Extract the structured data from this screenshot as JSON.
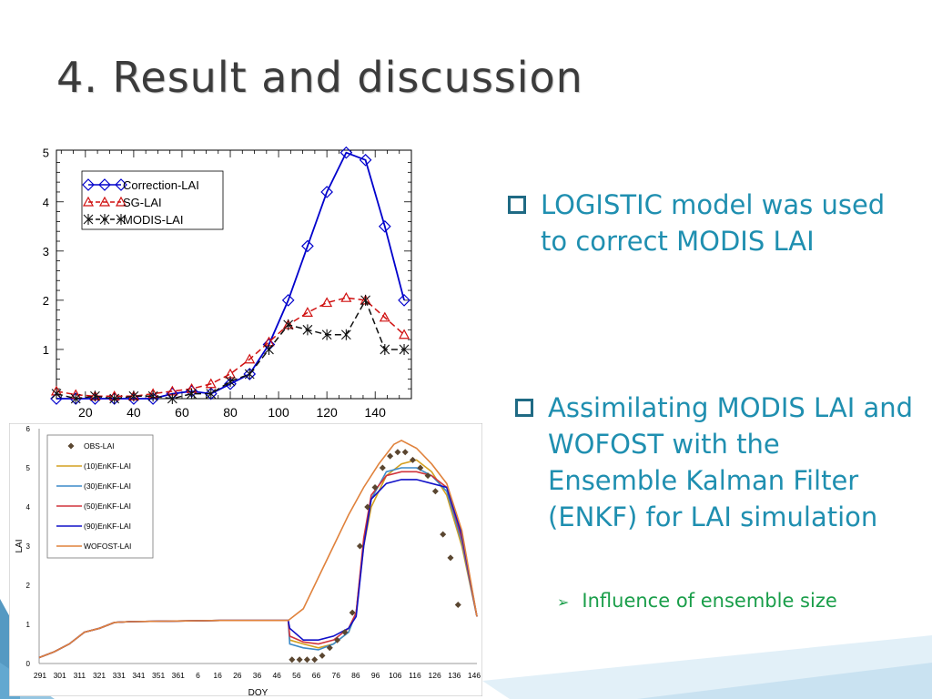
{
  "slide": {
    "title": "4. Result and discussion",
    "bullets": [
      "LOGISTIC model was used to correct MODIS LAI",
      "Assimilating MODIS LAI and WOFOST with the Ensemble Kalman Filter (ENKF)  for LAI simulation"
    ],
    "sub_bullet": "Influence of ensemble size",
    "colors": {
      "bullet_text": "#1f8fb0",
      "sub_text": "#1a9e4a",
      "title": "#3b3b3b"
    }
  },
  "chart_data": [
    {
      "type": "line",
      "xlim": [
        8,
        155
      ],
      "ylim": [
        0,
        5.05
      ],
      "xticks": [
        20,
        40,
        60,
        80,
        100,
        120,
        140
      ],
      "yticks": [
        1,
        2,
        3,
        4,
        5
      ],
      "legend_position": "top-left",
      "series": [
        {
          "name": "Correction-LAI",
          "color": "#0000cc",
          "dash": "solid",
          "marker": "diamond",
          "x": [
            8,
            16,
            24,
            32,
            40,
            48,
            56,
            64,
            72,
            80,
            88,
            96,
            104,
            112,
            120,
            128,
            136,
            144,
            152
          ],
          "y": [
            0,
            0,
            0,
            0,
            0,
            0,
            0.1,
            0.15,
            0.1,
            0.3,
            0.5,
            1.1,
            2.0,
            3.1,
            4.2,
            5.0,
            4.85,
            3.5,
            2.0
          ]
        },
        {
          "name": "SG-LAI",
          "color": "#d01010",
          "dash": "dash",
          "marker": "triangle",
          "x": [
            8,
            16,
            24,
            32,
            40,
            48,
            56,
            64,
            72,
            80,
            88,
            96,
            104,
            112,
            120,
            128,
            136,
            144,
            152
          ],
          "y": [
            0.15,
            0.08,
            0.05,
            0.05,
            0.05,
            0.1,
            0.15,
            0.2,
            0.3,
            0.5,
            0.8,
            1.15,
            1.5,
            1.75,
            1.95,
            2.05,
            2.0,
            1.65,
            1.3
          ]
        },
        {
          "name": "MODIS-LAI",
          "color": "#111111",
          "dash": "dash",
          "marker": "star",
          "x": [
            8,
            16,
            24,
            32,
            40,
            48,
            56,
            64,
            72,
            80,
            88,
            96,
            104,
            112,
            120,
            128,
            136,
            144,
            152
          ],
          "y": [
            0.1,
            0,
            0.05,
            0,
            0.05,
            0.05,
            0,
            0.1,
            0.1,
            0.35,
            0.5,
            1.0,
            1.5,
            1.4,
            1.3,
            1.3,
            2.0,
            1.0,
            1.0
          ]
        }
      ]
    },
    {
      "type": "line",
      "xlabel": "DOY",
      "ylabel": "LAI",
      "xlim": [
        0,
        58
      ],
      "ylim": [
        0,
        6
      ],
      "yticks": [
        0,
        1,
        2,
        3,
        4,
        5,
        6
      ],
      "xtick_labels": [
        "291",
        "301",
        "311",
        "321",
        "331",
        "341",
        "351",
        "361",
        "6",
        "16",
        "26",
        "36",
        "46",
        "56",
        "66",
        "76",
        "86",
        "96",
        "106",
        "116",
        "126",
        "136",
        "146"
      ],
      "legend_position": "top-left",
      "series": [
        {
          "name": "OBS-LAI",
          "color": "#5a4630",
          "style": "marker",
          "x": [
            33.5,
            34.5,
            35.5,
            36.5,
            37.5,
            38.5,
            39.5,
            40.5,
            41.5,
            42.5,
            43.5,
            44.5,
            45.5,
            46.5,
            47.5,
            48.5,
            49.5,
            50.5,
            51.5,
            52.5,
            53.5,
            54.5,
            55.5
          ],
          "y": [
            0.1,
            0.1,
            0.1,
            0.1,
            0.2,
            0.4,
            0.6,
            0.8,
            1.3,
            3.0,
            4.0,
            4.5,
            5.0,
            5.3,
            5.4,
            5.4,
            5.2,
            5.0,
            4.8,
            4.4,
            3.3,
            2.7,
            1.5
          ]
        },
        {
          "name": "(10)EnKF-LAI",
          "color": "#d4a020",
          "style": "line",
          "x": [
            0,
            2,
            4,
            6,
            8,
            10,
            12,
            16,
            24,
            33,
            33.2,
            35,
            37,
            39,
            41,
            42,
            43,
            44,
            46,
            48,
            50,
            52,
            54,
            56,
            58
          ],
          "y": [
            0.15,
            0.3,
            0.5,
            0.8,
            0.9,
            1.05,
            1.07,
            1.08,
            1.1,
            1.1,
            0.6,
            0.5,
            0.4,
            0.5,
            0.8,
            1.3,
            3.0,
            4.0,
            4.8,
            5.1,
            5.2,
            4.9,
            4.3,
            3.0,
            1.2
          ]
        },
        {
          "name": "(30)EnKF-LAI",
          "color": "#3c8ac8",
          "style": "line",
          "x": [
            0,
            2,
            4,
            6,
            8,
            10,
            12,
            16,
            24,
            33,
            33.2,
            35,
            37,
            39,
            41,
            42,
            43,
            44,
            46,
            48,
            50,
            52,
            54,
            56,
            58
          ],
          "y": [
            0.15,
            0.3,
            0.5,
            0.8,
            0.9,
            1.05,
            1.07,
            1.08,
            1.1,
            1.1,
            0.5,
            0.4,
            0.35,
            0.5,
            0.8,
            1.3,
            3.1,
            4.2,
            4.9,
            5.0,
            5.0,
            4.8,
            4.4,
            3.1,
            1.2
          ]
        },
        {
          "name": "(50)EnKF-LAI",
          "color": "#d0343c",
          "style": "line",
          "x": [
            0,
            2,
            4,
            6,
            8,
            10,
            12,
            16,
            24,
            33,
            33.2,
            35,
            37,
            39,
            41,
            42,
            43,
            44,
            46,
            48,
            50,
            52,
            54,
            56,
            58
          ],
          "y": [
            0.15,
            0.3,
            0.5,
            0.8,
            0.9,
            1.05,
            1.07,
            1.08,
            1.1,
            1.1,
            0.7,
            0.55,
            0.5,
            0.6,
            0.9,
            1.3,
            3.2,
            4.3,
            4.8,
            4.9,
            4.9,
            4.8,
            4.5,
            3.2,
            1.2
          ]
        },
        {
          "name": "(90)EnKF-LAI",
          "color": "#1010c8",
          "style": "line",
          "x": [
            0,
            2,
            4,
            6,
            8,
            10,
            12,
            16,
            24,
            33,
            33.2,
            35,
            37,
            39,
            41,
            42,
            43,
            44,
            46,
            48,
            50,
            52,
            54,
            56,
            58
          ],
          "y": [
            0.15,
            0.3,
            0.5,
            0.8,
            0.9,
            1.05,
            1.07,
            1.08,
            1.1,
            1.1,
            0.9,
            0.6,
            0.6,
            0.7,
            0.9,
            1.2,
            3.0,
            4.2,
            4.6,
            4.7,
            4.7,
            4.6,
            4.5,
            3.3,
            1.2
          ]
        },
        {
          "name": "WOFOST-LAI",
          "color": "#e0823c",
          "style": "line",
          "x": [
            0,
            2,
            4,
            6,
            8,
            10,
            12,
            16,
            24,
            33,
            35,
            37,
            39,
            41,
            43,
            45,
            47,
            48,
            50,
            52,
            54,
            56,
            58
          ],
          "y": [
            0.15,
            0.3,
            0.5,
            0.8,
            0.9,
            1.05,
            1.07,
            1.08,
            1.1,
            1.1,
            1.4,
            2.2,
            3.0,
            3.8,
            4.5,
            5.1,
            5.6,
            5.7,
            5.5,
            5.1,
            4.6,
            3.4,
            1.2
          ]
        }
      ]
    }
  ]
}
